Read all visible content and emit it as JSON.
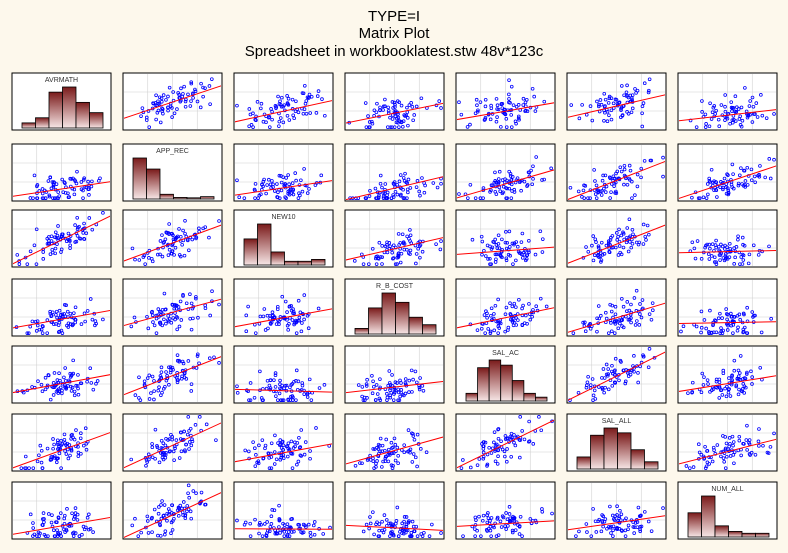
{
  "titles": {
    "line1": "TYPE=I",
    "line2": "Matrix Plot",
    "line3": "Spreadsheet in workbooklatest.stw 48v*123c"
  },
  "colors": {
    "background": "#fdf8ec",
    "panel": "#ffffff",
    "points": "#0000ff",
    "fit_line": "#ff0000",
    "histogram_dark": "#7a1a1a",
    "histogram_light": "#f7e6e6",
    "grid": "#d0d0d0"
  },
  "chart_data": {
    "type": "scatter",
    "title": "Matrix Plot",
    "subtitle": "Spreadsheet in workbooklatest.stw 48v*123c",
    "variables": [
      "AVRMATH",
      "APP_REC",
      "NEW10",
      "R_B_COST",
      "SAL_AC",
      "SAL_ALL",
      "NUM_ALL"
    ],
    "diagonal": "histogram",
    "off_diagonal": "scatter with linear fit",
    "grid": true,
    "histograms": {
      "AVRMATH": [
        2,
        4,
        14,
        16,
        10,
        6
      ],
      "APP_REC": [
        52,
        38,
        6,
        2,
        1,
        3
      ],
      "NEW10": [
        28,
        44,
        14,
        4,
        4,
        6
      ],
      "R_B_COST": [
        6,
        28,
        44,
        34,
        18,
        10
      ],
      "SAL_AC": [
        6,
        26,
        32,
        28,
        16,
        6,
        3
      ],
      "SAL_ALL": [
        10,
        28,
        34,
        30,
        16,
        6
      ],
      "NUM_ALL": [
        26,
        44,
        12,
        6,
        4,
        4
      ]
    },
    "fit_lines": [
      [
        null,
        [
          0.2,
          0.78
        ],
        [
          0.14,
          0.52
        ],
        [
          0.12,
          0.47
        ],
        [
          0.18,
          0.48
        ],
        [
          0.22,
          0.62
        ],
        [
          0.16,
          0.36
        ]
      ],
      [
        [
          0.08,
          0.34
        ],
        null,
        [
          0.1,
          0.36
        ],
        [
          0.02,
          0.43
        ],
        [
          0.05,
          0.55
        ],
        [
          0.02,
          0.7
        ],
        [
          0.04,
          0.62
        ]
      ],
      [
        [
          0.05,
          0.9
        ],
        [
          0.1,
          0.74
        ],
        null,
        [
          0.12,
          0.52
        ],
        [
          0.22,
          0.35
        ],
        [
          0.06,
          0.74
        ],
        [
          0.25,
          0.29
        ]
      ],
      [
        [
          0.14,
          0.45
        ],
        [
          0.18,
          0.65
        ],
        [
          0.16,
          0.48
        ],
        null,
        [
          0.14,
          0.5
        ],
        [
          0.06,
          0.58
        ],
        [
          0.22,
          0.25
        ]
      ],
      [
        [
          0.18,
          0.5
        ],
        [
          0.14,
          0.82
        ],
        [
          0.24,
          0.19
        ],
        [
          0.18,
          0.38
        ],
        null,
        [
          0.04,
          0.9
        ],
        [
          0.2,
          0.48
        ]
      ],
      [
        [
          0.05,
          0.68
        ],
        [
          0.05,
          0.85
        ],
        [
          0.16,
          0.48
        ],
        [
          0.12,
          0.6
        ],
        [
          0.05,
          0.9
        ],
        null,
        [
          0.12,
          0.56
        ]
      ],
      [
        [
          0.08,
          0.38
        ],
        [
          0.02,
          0.82
        ],
        [
          0.18,
          0.17
        ],
        [
          0.24,
          0.15
        ],
        [
          0.22,
          0.32
        ],
        [
          0.16,
          0.41
        ],
        null
      ]
    ]
  }
}
